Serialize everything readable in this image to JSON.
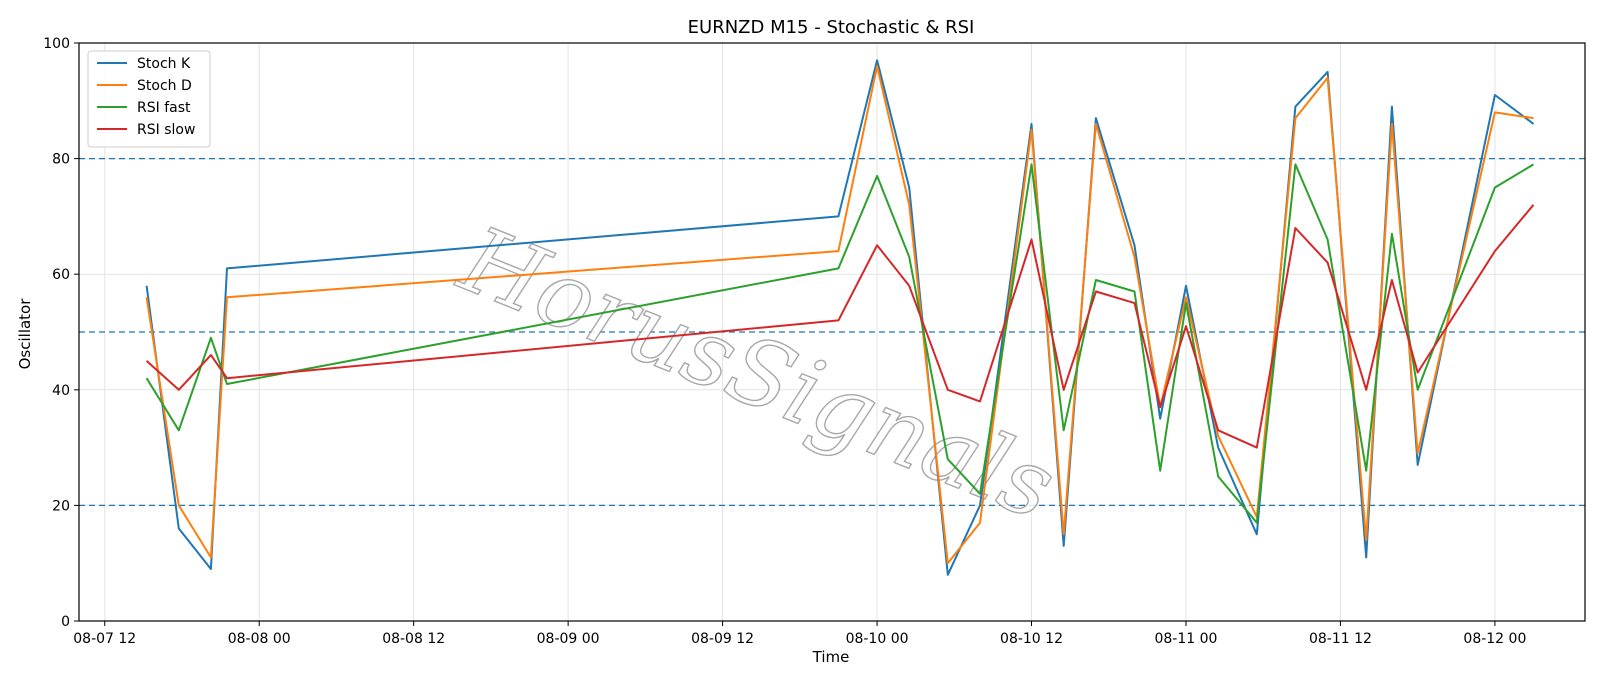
{
  "chart_data": {
    "type": "line",
    "title": "EURNZD M15 - Stochastic & RSI",
    "xlabel": "Time",
    "ylabel": "Oscillator",
    "ylim": [
      0,
      100
    ],
    "xlim": [
      "08-07 10:00",
      "08-12 07:00"
    ],
    "yticks": [
      0,
      20,
      40,
      60,
      80,
      100
    ],
    "xticks": [
      "08-07 12",
      "08-08 00",
      "08-08 12",
      "08-09 00",
      "08-09 12",
      "08-10 00",
      "08-10 12",
      "08-11 00",
      "08-11 12",
      "08-12 00"
    ],
    "grid": true,
    "legend_position": "top-left",
    "reference_lines": [
      80,
      50,
      20
    ],
    "reference_line_color": "#1f77b4",
    "watermark": "HorusSignals",
    "x": [
      "08-07 15:15",
      "08-07 17:45",
      "08-07 20:15",
      "08-07 21:30",
      "08-09 21:00",
      "08-10 00:00",
      "08-10 02:30",
      "08-10 05:30",
      "08-10 08:00",
      "08-10 12:00",
      "08-10 14:30",
      "08-10 17:00",
      "08-10 20:00",
      "08-10 22:00",
      "08-11 00:00",
      "08-11 02:30",
      "08-11 05:30",
      "08-11 08:30",
      "08-11 11:00",
      "08-11 14:00",
      "08-11 16:00",
      "08-11 18:00",
      "08-12 00:00",
      "08-12 03:00"
    ],
    "series": [
      {
        "name": "Stoch K",
        "color": "#1f77b4",
        "values": [
          58,
          16,
          9,
          61,
          70,
          97,
          75,
          8,
          20,
          86,
          13,
          87,
          65,
          35,
          58,
          30,
          15,
          89,
          95,
          11,
          89,
          27,
          91,
          86
        ]
      },
      {
        "name": "Stoch D",
        "color": "#ff7f0e",
        "values": [
          56,
          20,
          11,
          56,
          64,
          96,
          72,
          10,
          17,
          85,
          15,
          86,
          63,
          37,
          56,
          32,
          18,
          87,
          94,
          14,
          86,
          29,
          88,
          87
        ]
      },
      {
        "name": "RSI fast",
        "color": "#2ca02c",
        "values": [
          42,
          33,
          49,
          41,
          61,
          77,
          63,
          28,
          22,
          79,
          33,
          59,
          57,
          26,
          55,
          25,
          17,
          79,
          66,
          26,
          67,
          40,
          75,
          79
        ]
      },
      {
        "name": "RSI slow",
        "color": "#d62728",
        "values": [
          45,
          40,
          46,
          42,
          52,
          65,
          58,
          40,
          38,
          66,
          40,
          57,
          55,
          37,
          51,
          33,
          30,
          68,
          62,
          40,
          59,
          43,
          64,
          72
        ]
      }
    ]
  }
}
